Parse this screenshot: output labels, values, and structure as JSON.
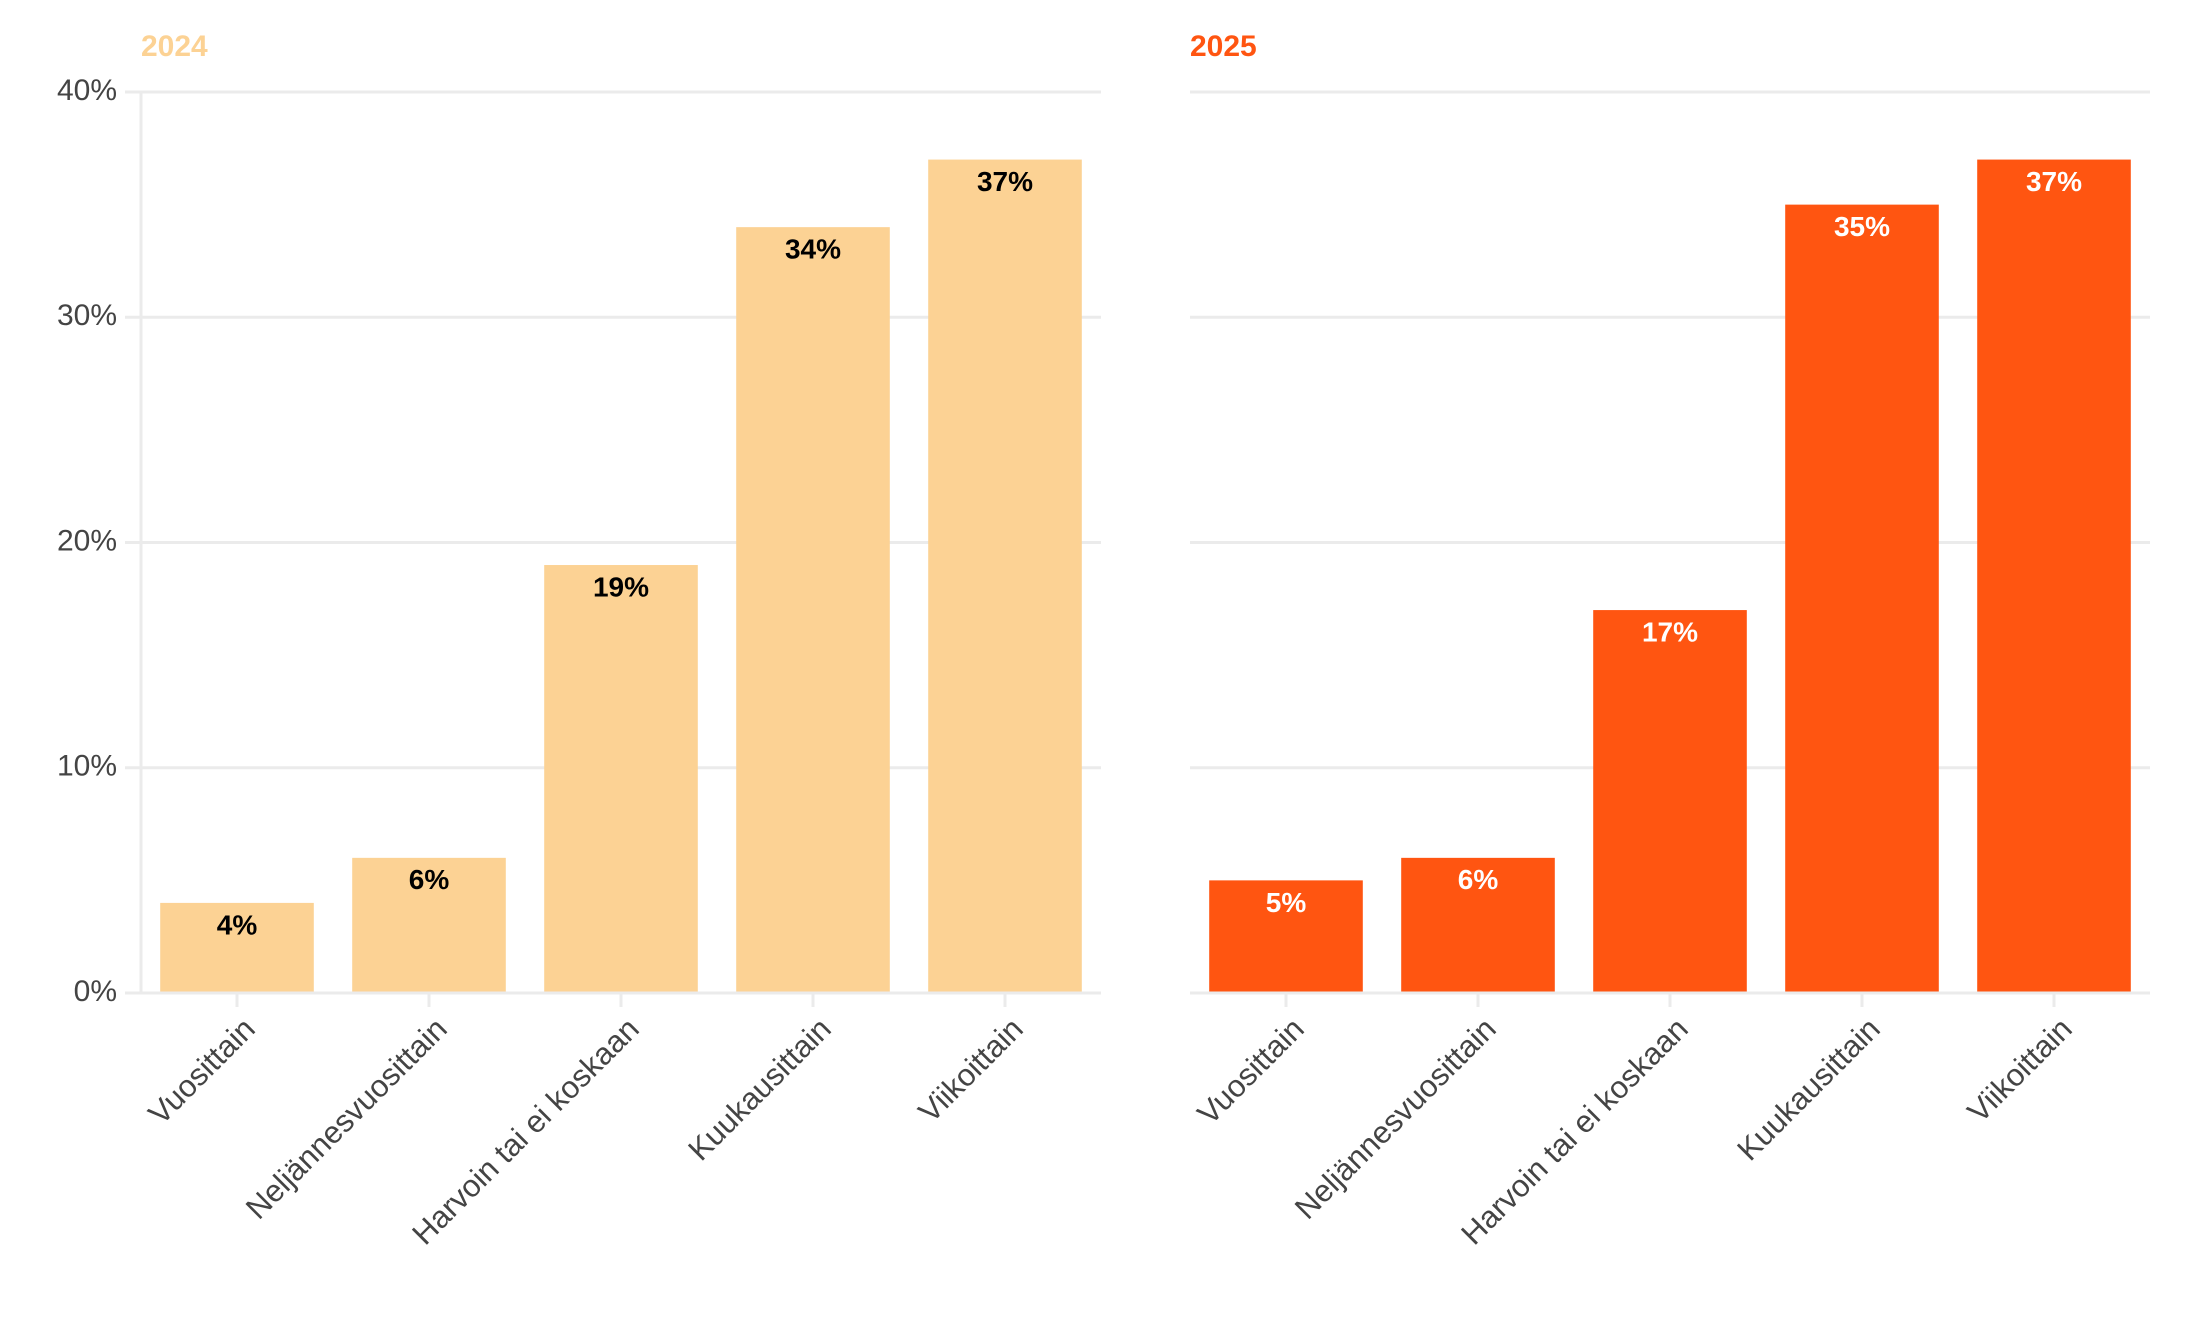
{
  "chart_data": [
    {
      "type": "bar",
      "title": "2024",
      "title_color": "#FCD294",
      "bar_color": "#FCD294",
      "label_color": "#000000",
      "categories": [
        "Vuosittain",
        "Neljännesvuosittain",
        "Harvoin tai ei koskaan",
        "Kuukausittain",
        "Viikoittain"
      ],
      "values": [
        4,
        6,
        19,
        34,
        37
      ],
      "value_labels": [
        "4%",
        "6%",
        "19%",
        "34%",
        "37%"
      ],
      "ylim": [
        0,
        40
      ],
      "y_ticks": [
        "0%",
        "10%",
        "20%",
        "30%",
        "40%"
      ],
      "grid": true
    },
    {
      "type": "bar",
      "title": "2025",
      "title_color": "#FF5511",
      "bar_color": "#FF5511",
      "label_color": "#FFFFFF",
      "categories": [
        "Vuosittain",
        "Neljännesvuosittain",
        "Harvoin tai ei koskaan",
        "Kuukausittain",
        "Viikoittain"
      ],
      "values": [
        5,
        6,
        17,
        35,
        37
      ],
      "value_labels": [
        "5%",
        "6%",
        "17%",
        "35%",
        "37%"
      ],
      "ylim": [
        0,
        40
      ],
      "y_ticks": [],
      "grid": true
    }
  ],
  "colors": {
    "grid": "#EBEBEB",
    "axis_text": "#444444"
  }
}
